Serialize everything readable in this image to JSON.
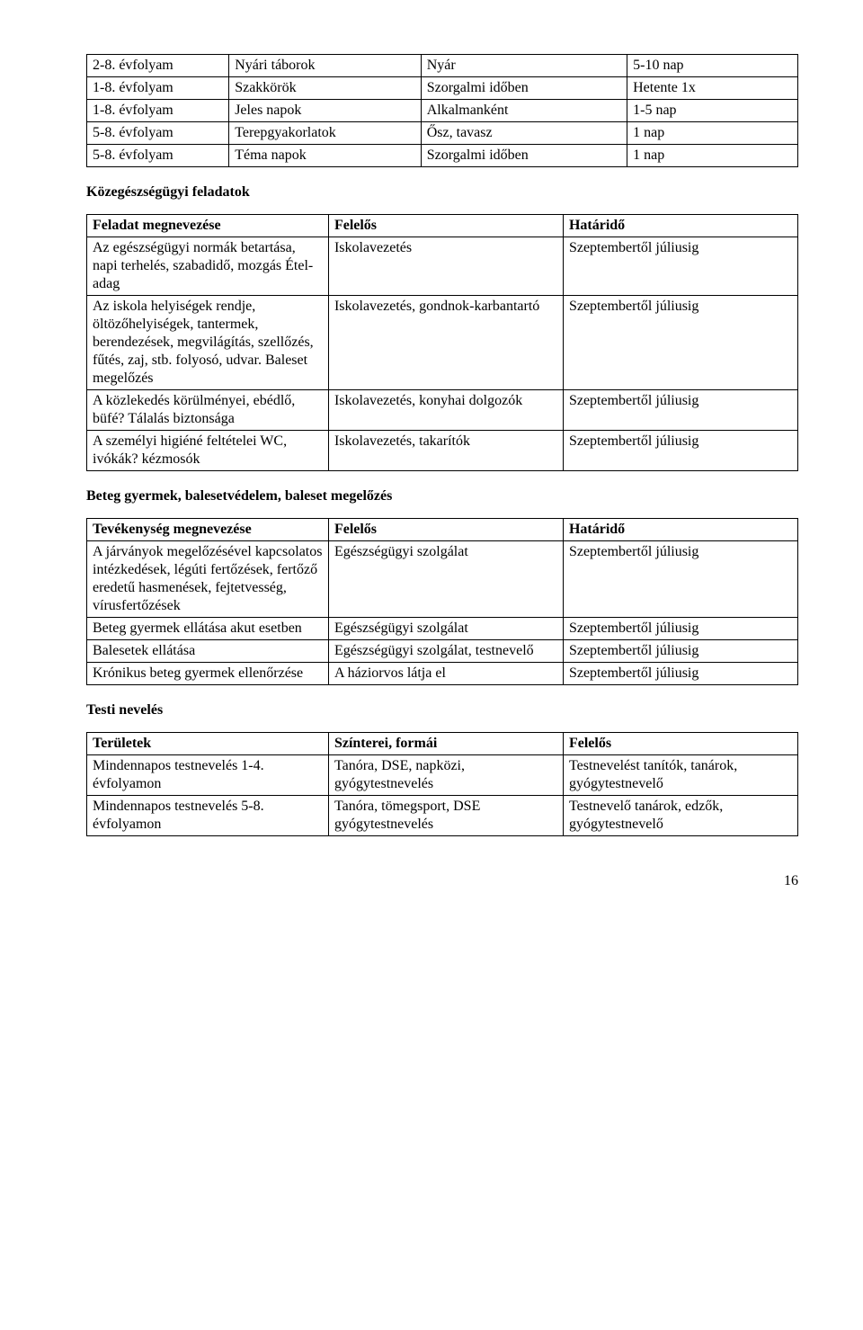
{
  "page_number": "16",
  "table1": {
    "rows": [
      [
        "2-8. évfolyam",
        "Nyári táborok",
        "Nyár",
        "5-10 nap"
      ],
      [
        "1-8. évfolyam",
        "Szakkörök",
        "Szorgalmi időben",
        "Hetente 1x"
      ],
      [
        "1-8. évfolyam",
        "Jeles napok",
        "Alkalmanként",
        "1-5 nap"
      ],
      [
        "5-8. évfolyam",
        "Terepgyakorlatok",
        "Ősz, tavasz",
        "1 nap"
      ],
      [
        "5-8. évfolyam",
        "Téma napok",
        "Szorgalmi időben",
        "1 nap"
      ]
    ]
  },
  "section2_title": "Közegészségügyi feladatok",
  "table2": {
    "header": [
      "Feladat megnevezése",
      "Felelős",
      "Határidő"
    ],
    "rows": [
      [
        "Az egészségügyi normák betartása, napi terhelés, szabadidő, mozgás Étel-adag",
        "Iskolavezetés",
        "Szeptembertől júliusig"
      ],
      [
        "Az iskola helyiségek rendje, öltözőhelyiségek, tantermek, berendezések, megvilágítás, szellőzés, fűtés, zaj, stb. folyosó, udvar. Baleset megelőzés",
        "Iskolavezetés, gondnok-karbantartó",
        "Szeptembertől júliusig"
      ],
      [
        "A közlekedés körülményei, ebédlő, büfé? Tálalás biztonsága",
        "Iskolavezetés, konyhai dolgozók",
        "Szeptembertől júliusig"
      ],
      [
        "A személyi higiéné feltételei WC, ivókák? kézmosók",
        "Iskolavezetés, takarítók",
        "Szeptembertől júliusig"
      ]
    ]
  },
  "section3_title": "Beteg gyermek, balesetvédelem, baleset megelőzés",
  "table3": {
    "header": [
      "Tevékenység megnevezése",
      "Felelős",
      "Határidő"
    ],
    "rows": [
      [
        "A járványok megelőzésével kapcsolatos intézkedések, légúti fertőzések, fertőző eredetű hasmenések, fejtetvesség, vírusfertőzések",
        "Egészségügyi szolgálat",
        "Szeptembertől júliusig"
      ],
      [
        "Beteg gyermek ellátása akut esetben",
        "Egészségügyi szolgálat",
        "Szeptembertől júliusig"
      ],
      [
        "Balesetek ellátása",
        "Egészségügyi szolgálat, testnevelő",
        "Szeptembertől júliusig"
      ],
      [
        "Krónikus beteg gyermek ellenőrzése",
        "A háziorvos látja el",
        "Szeptembertől júliusig"
      ]
    ]
  },
  "section4_title": "Testi nevelés",
  "table4": {
    "header": [
      "Területek",
      "Színterei, formái",
      "Felelős"
    ],
    "rows": [
      [
        "Mindennapos testnevelés 1-4. évfolyamon",
        "Tanóra, DSE, napközi, gyógytestnevelés",
        "Testnevelést tanítók, tanárok, gyógytestnevelő"
      ],
      [
        "Mindennapos testnevelés 5-8. évfolyamon",
        "Tanóra, tömegsport, DSE gyógytestnevelés",
        "Testnevelő tanárok, edzők, gyógytestnevelő"
      ]
    ]
  }
}
